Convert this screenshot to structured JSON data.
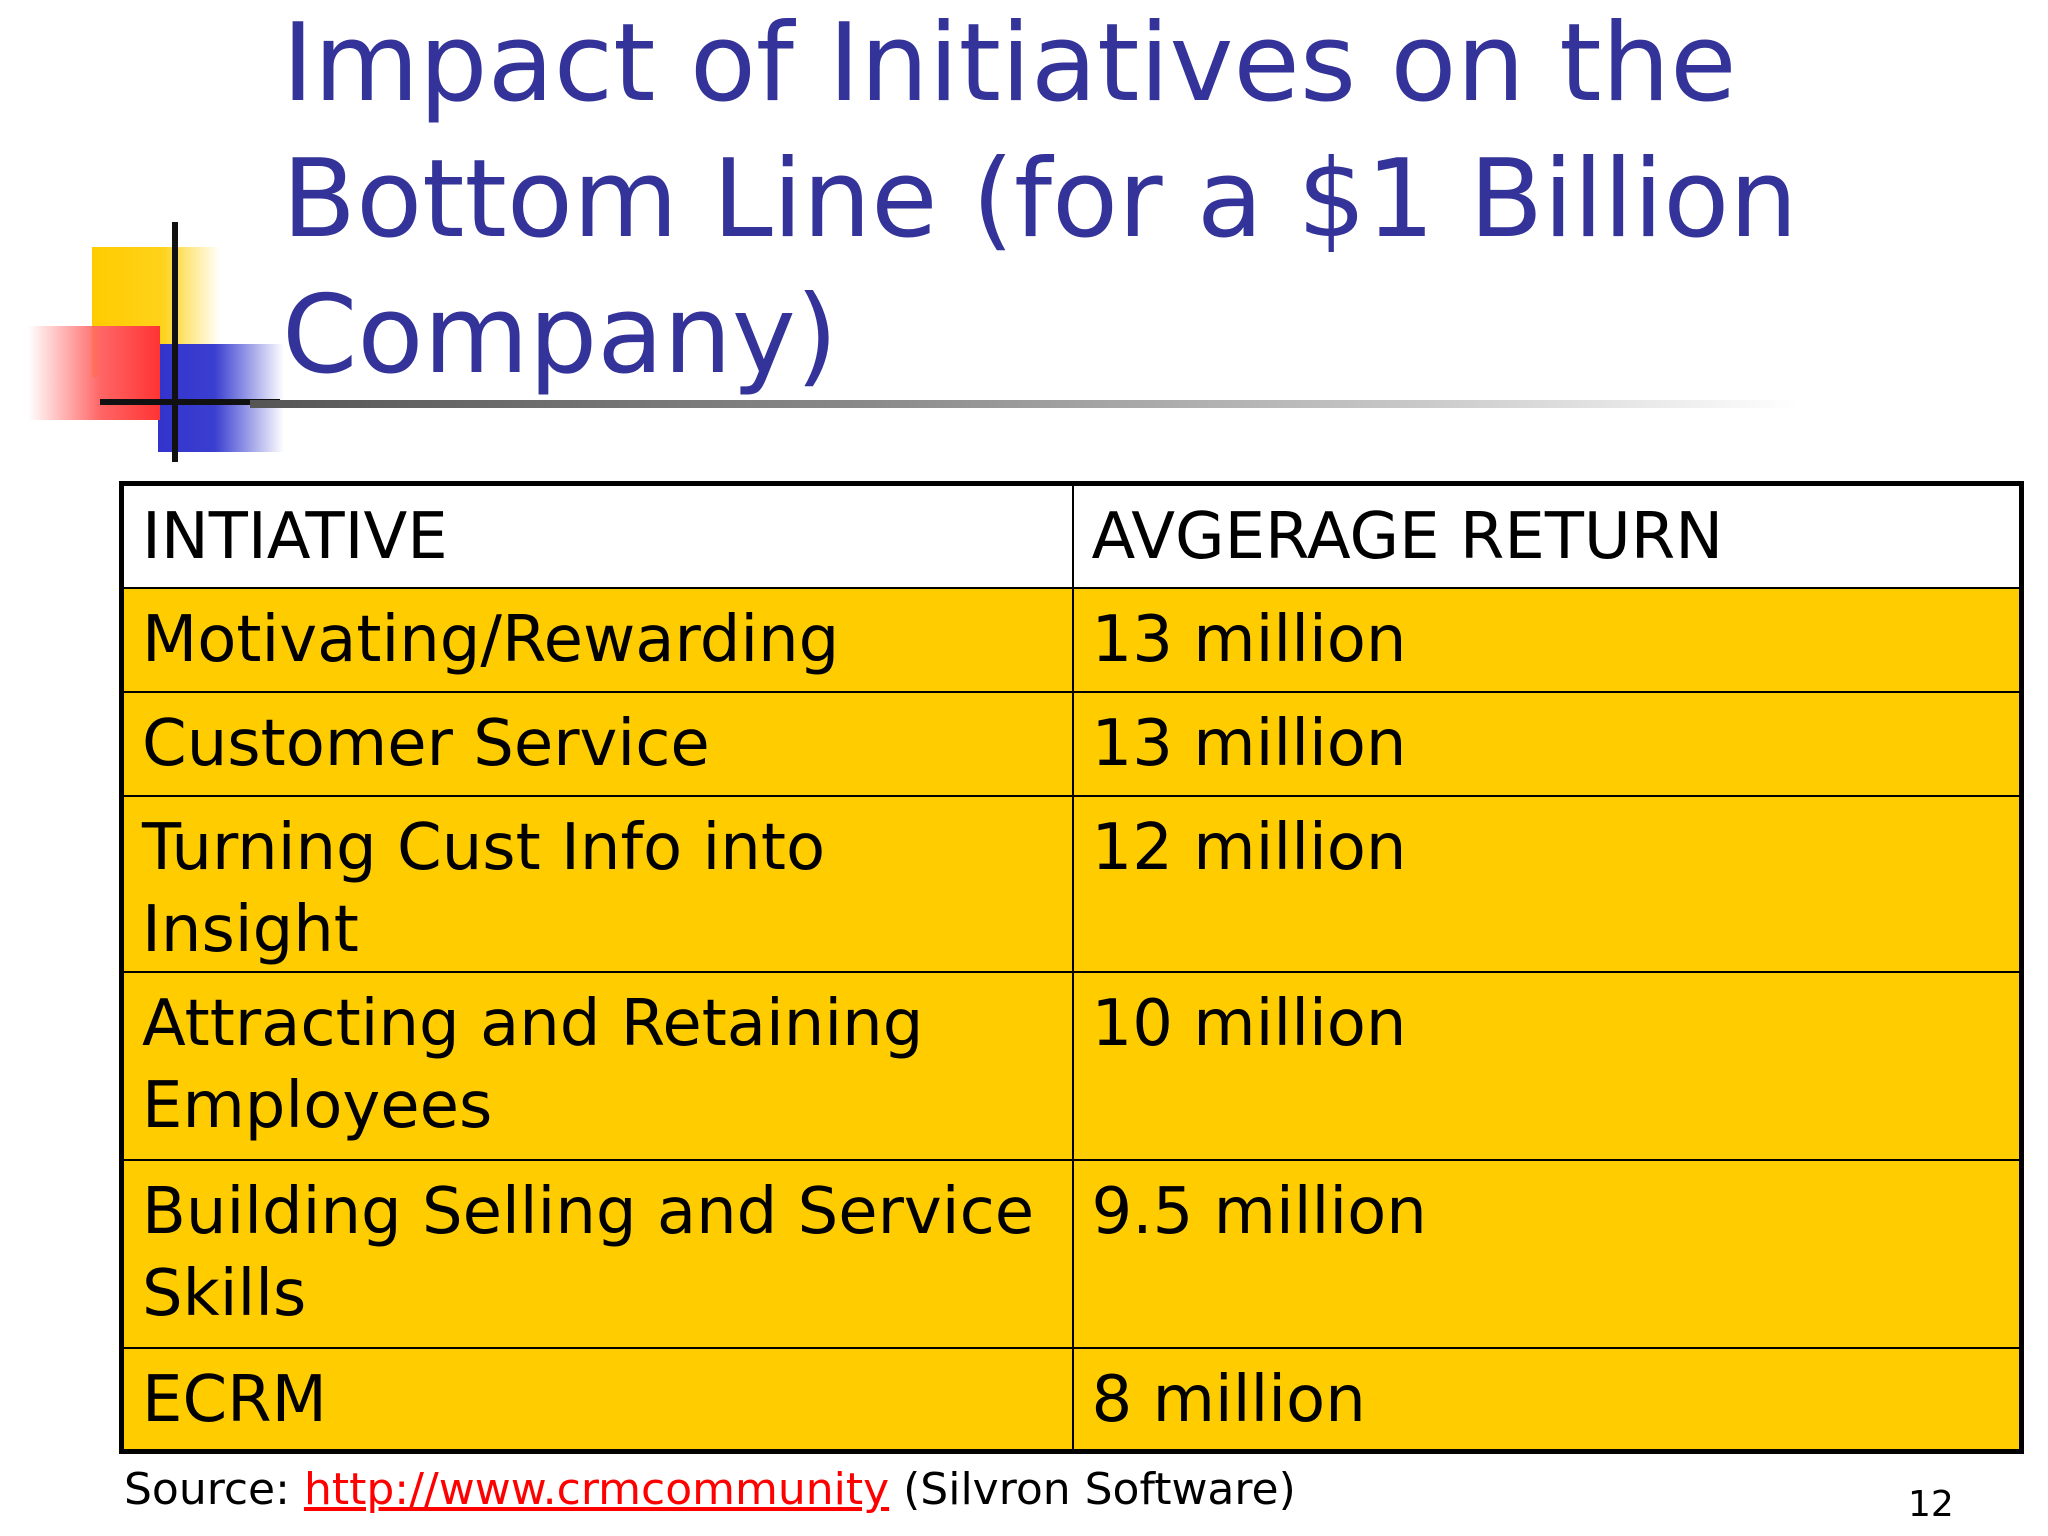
{
  "slide": {
    "title": "Impact of Initiatives on the Bottom Line (for a $1 Billion Company)",
    "page_number": "12"
  },
  "table": {
    "headers": [
      "INTIATIVE",
      "AVGERAGE RETURN"
    ],
    "rows": [
      {
        "initiative": "Motivating/Rewarding",
        "return": "13 million"
      },
      {
        "initiative": "Customer Service",
        "return": "13 million"
      },
      {
        "initiative": "Turning Cust Info into Insight",
        "return": "12 million"
      },
      {
        "initiative": "Attracting and Retaining Employees",
        "return": "10 million"
      },
      {
        "initiative": "Building Selling and Service Skills",
        "return": "9.5 million"
      },
      {
        "initiative": "ECRM",
        "return": "8 million"
      }
    ]
  },
  "source": {
    "prefix": "Source: ",
    "link_text": "http://www.crmcommunity",
    "suffix": " (Silvron Software)"
  },
  "colors": {
    "title": "#333399",
    "table_fill": "#ffcc00",
    "link": "#ff0000",
    "deco_yellow": "#ffcc00",
    "deco_blue": "#3333cc",
    "deco_red": "#ff3333"
  }
}
